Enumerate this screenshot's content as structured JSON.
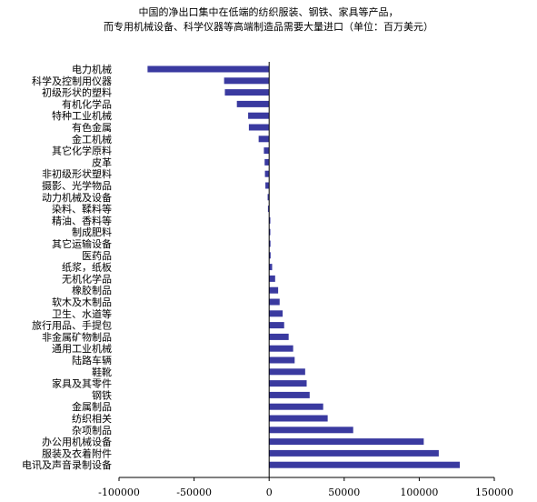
{
  "chart_data": {
    "type": "bar",
    "orientation": "horizontal",
    "title": "中国的净出口集中在低端的纺织服装、钢铁、家具等产品，",
    "subtitle": "而专用机械设备、科学仪器等高端制造品需要大量进口（单位：百万美元）",
    "xlabel": "",
    "ylabel": "",
    "xlim": [
      -100000,
      150000
    ],
    "xticks": [
      -100000,
      -50000,
      0,
      50000,
      100000,
      150000
    ],
    "xtick_labels": [
      "-100000",
      "-50000",
      "0",
      "50000",
      "100000",
      "150000"
    ],
    "grid": false,
    "legend": "none",
    "bar_color": "#3a3aa0",
    "categories": [
      "电力机械",
      "科学及控制用仪器",
      "初级形状的塑料",
      "有机化学品",
      "特种工业机械",
      "有色金属",
      "金工机械",
      "其它化学原料",
      "皮革",
      "非初级形状塑料",
      "摄影、光学物品",
      "动力机械及设备",
      "染料、鞣料等",
      "精油、香料等",
      "制成肥料",
      "其它运输设备",
      "医药品",
      "纸浆，纸板",
      "无机化学品",
      "橡胶制品",
      "软木及木制品",
      "卫生、水道等",
      "旅行用品、手提包",
      "非金属矿物制品",
      "通用工业机械",
      "陆路车辆",
      "鞋靴",
      "家具及其零件",
      "钢铁",
      "金属制品",
      "纺织相关",
      "杂项制品",
      "办公用机械设备",
      "服装及衣着附件",
      "电讯及声音录制设备"
    ],
    "values": [
      -81000,
      -30000,
      -29500,
      -21500,
      -14000,
      -13500,
      -7000,
      -3500,
      -3000,
      -2800,
      -2500,
      -1000,
      -800,
      800,
      800,
      900,
      1000,
      2000,
      4000,
      6000,
      7000,
      9000,
      10000,
      13000,
      16000,
      17000,
      24000,
      25000,
      27000,
      36000,
      39000,
      56000,
      103000,
      113000,
      127000
    ]
  }
}
